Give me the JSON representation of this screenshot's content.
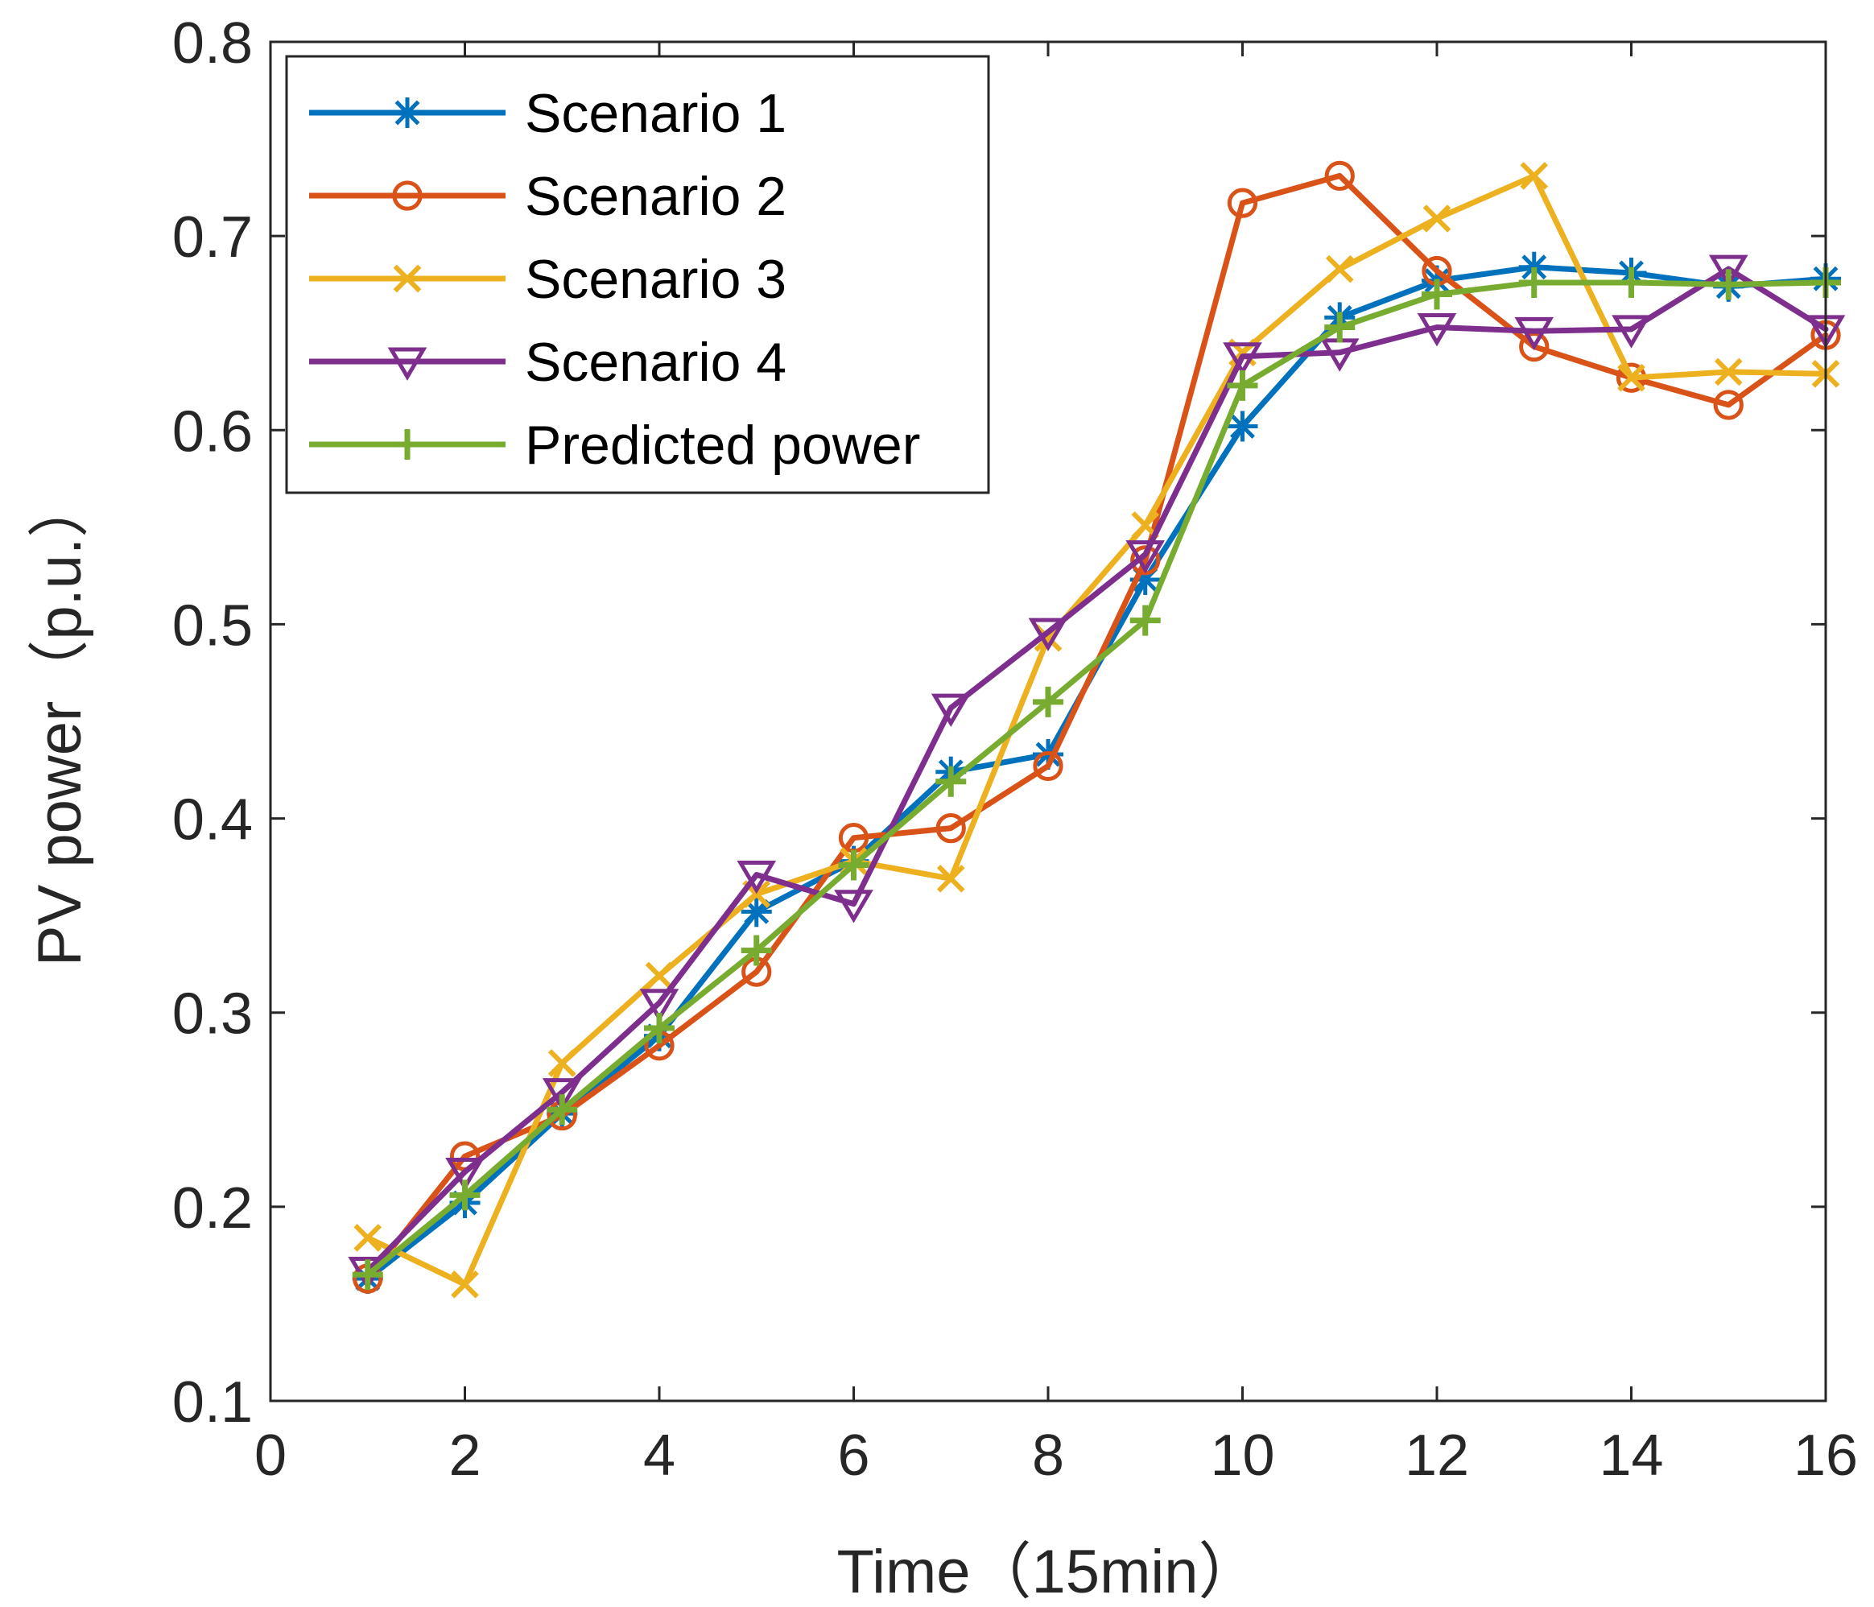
{
  "chart_data": {
    "type": "line",
    "xlabel": "Time（15min）",
    "ylabel": "PV power（p.u.）",
    "xlim": [
      0,
      16
    ],
    "ylim": [
      0.1,
      0.8
    ],
    "xticks": [
      0,
      2,
      4,
      6,
      8,
      10,
      12,
      14,
      16
    ],
    "xtick_labels": [
      "0",
      "2",
      "4",
      "6",
      "8",
      "10",
      "12",
      "14",
      "16"
    ],
    "yticks": [
      0.1,
      0.2,
      0.3,
      0.4,
      0.5,
      0.6,
      0.7,
      0.8
    ],
    "ytick_labels": [
      "0.1",
      "0.2",
      "0.3",
      "0.4",
      "0.5",
      "0.6",
      "0.7",
      "0.8"
    ],
    "grid": false,
    "legend_position": "top-left",
    "x": [
      1,
      2,
      3,
      4,
      5,
      6,
      7,
      8,
      9,
      10,
      11,
      12,
      13,
      14,
      15,
      16
    ],
    "series": [
      {
        "name": "Scenario 1",
        "color": "#0072BD",
        "marker": "asterisk",
        "values": [
          0.163,
          0.202,
          0.248,
          0.288,
          0.352,
          0.378,
          0.424,
          0.433,
          0.523,
          0.602,
          0.658,
          0.677,
          0.684,
          0.681,
          0.674,
          0.678
        ]
      },
      {
        "name": "Scenario 2",
        "color": "#D95319",
        "marker": "circle",
        "values": [
          0.163,
          0.226,
          0.247,
          0.283,
          0.321,
          0.39,
          0.395,
          0.427,
          0.533,
          0.717,
          0.731,
          0.682,
          0.643,
          0.627,
          0.613,
          0.649
        ]
      },
      {
        "name": "Scenario 3",
        "color": "#EDB120",
        "marker": "x",
        "values": [
          0.184,
          0.16,
          0.274,
          0.319,
          0.361,
          0.378,
          0.369,
          0.493,
          0.551,
          0.64,
          0.683,
          0.709,
          0.731,
          0.627,
          0.63,
          0.629
        ]
      },
      {
        "name": "Scenario 4",
        "color": "#7E2F8E",
        "marker": "triangle-down",
        "values": [
          0.167,
          0.218,
          0.259,
          0.305,
          0.371,
          0.356,
          0.457,
          0.496,
          0.536,
          0.638,
          0.64,
          0.653,
          0.651,
          0.652,
          0.683,
          0.652
        ]
      },
      {
        "name": "Predicted power",
        "color": "#77AC30",
        "marker": "plus",
        "values": [
          0.165,
          0.206,
          0.25,
          0.292,
          0.332,
          0.376,
          0.419,
          0.46,
          0.502,
          0.623,
          0.653,
          0.67,
          0.676,
          0.676,
          0.675,
          0.676
        ]
      }
    ]
  }
}
